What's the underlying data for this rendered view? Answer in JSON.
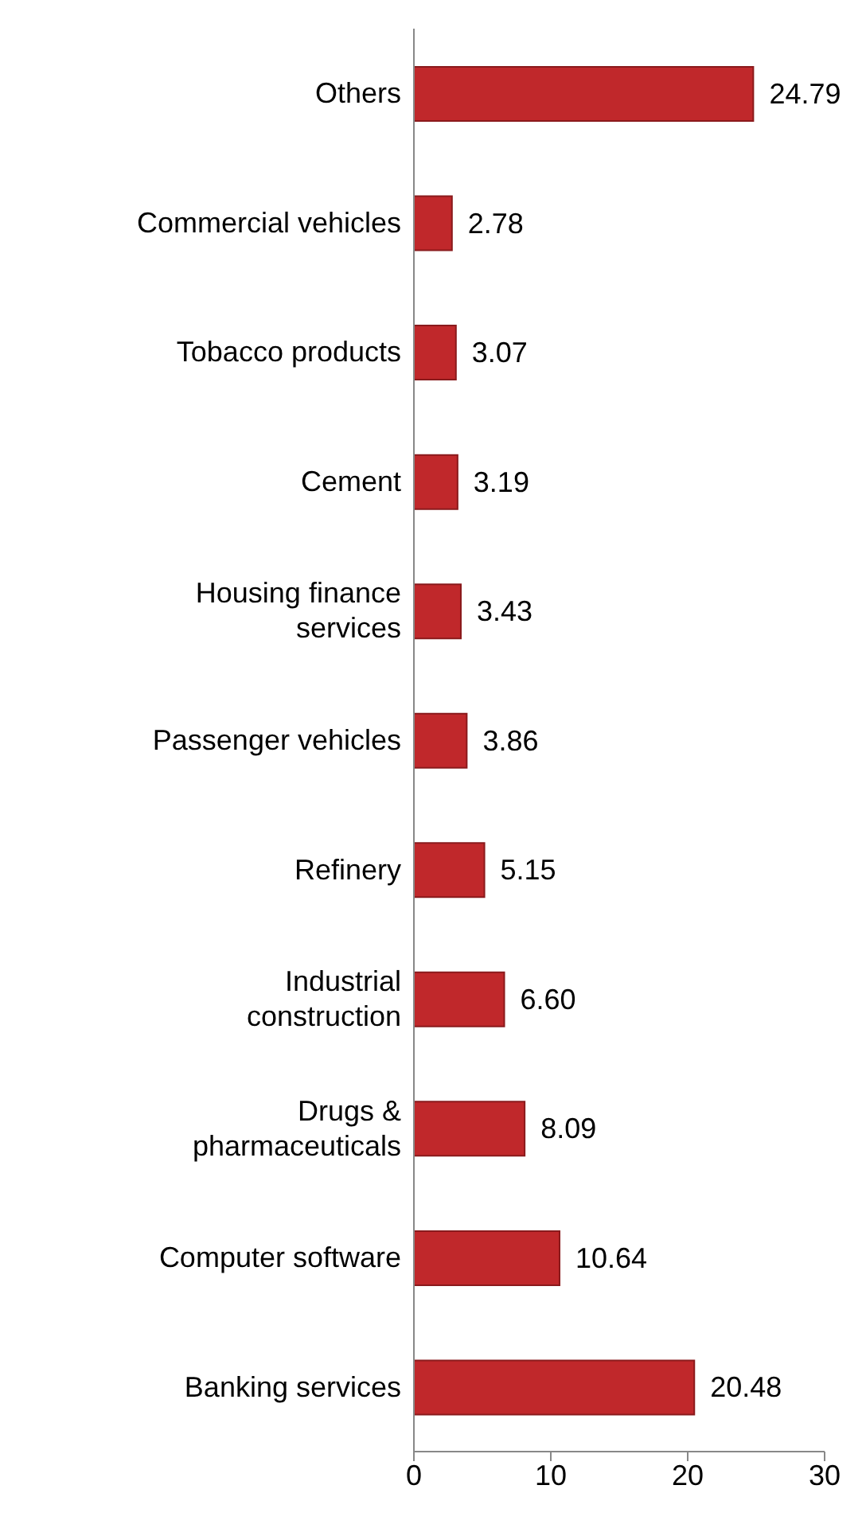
{
  "chart_data": {
    "type": "bar",
    "orientation": "horizontal",
    "categories": [
      "Others",
      "Commercial vehicles",
      "Tobacco products",
      "Cement",
      "Housing finance services",
      "Passenger vehicles",
      "Refinery",
      "Industrial construction",
      "Drugs & pharmaceuticals",
      "Computer software",
      "Banking services"
    ],
    "values": [
      24.79,
      2.78,
      3.07,
      3.19,
      3.43,
      3.86,
      5.15,
      6.6,
      8.09,
      10.64,
      20.48
    ],
    "value_labels": [
      "24.79",
      "2.78",
      "3.07",
      "3.19",
      "3.43",
      "3.86",
      "5.15",
      "6.60",
      "8.09",
      "10.64",
      "20.48"
    ],
    "color": "#c0282b",
    "xlim": [
      0,
      30
    ],
    "xticks": [
      0,
      10,
      20,
      30
    ],
    "grid": false,
    "legend": false
  }
}
